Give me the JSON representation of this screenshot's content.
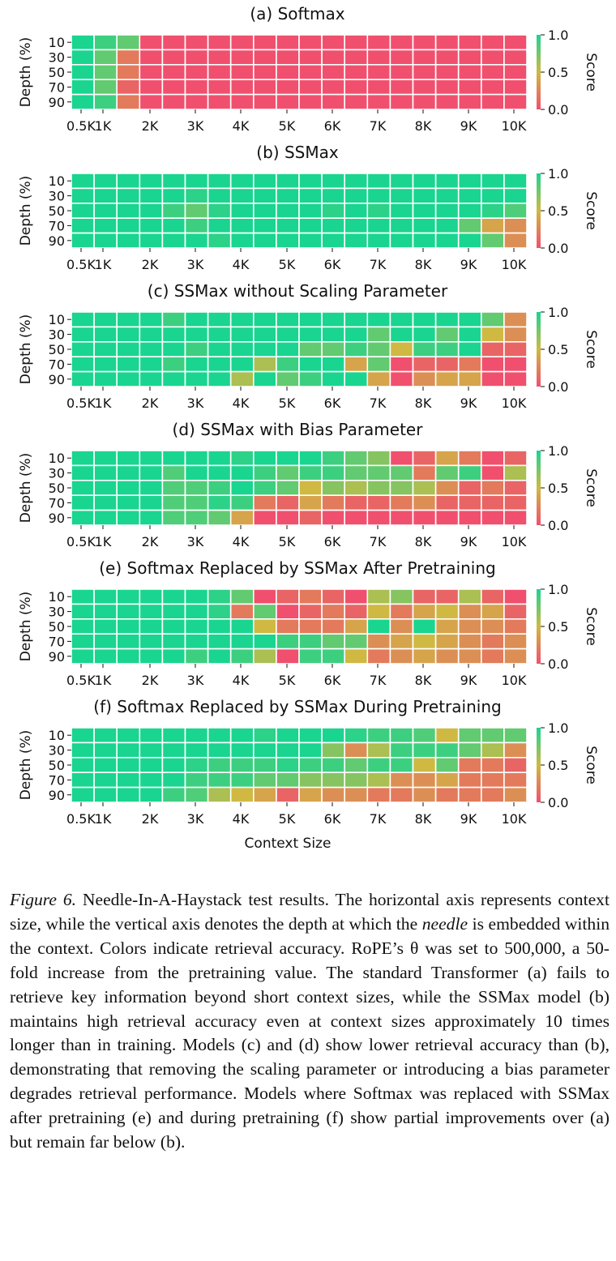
{
  "chart_data": [
    {
      "type": "heatmap",
      "title": "(a) Softmax",
      "xlabel": "",
      "ylabel": "Depth (%)",
      "colorbar_label": "Score",
      "colorbar_ticks": [
        "1.0",
        "0.5",
        "0.0"
      ],
      "x_tick_labels": [
        "0.5K",
        "1K",
        "2K",
        "3K",
        "4K",
        "5K",
        "6K",
        "7K",
        "8K",
        "9K",
        "10K"
      ],
      "y_tick_labels": [
        "10",
        "30",
        "50",
        "70",
        "90"
      ],
      "value_range": [
        0,
        1
      ],
      "values": [
        [
          1.0,
          0.9,
          0.8,
          0,
          0,
          0,
          0,
          0,
          0,
          0,
          0,
          0,
          0,
          0,
          0,
          0,
          0,
          0,
          0,
          0
        ],
        [
          1.0,
          0.8,
          0.2,
          0,
          0,
          0,
          0,
          0,
          0,
          0,
          0,
          0,
          0,
          0,
          0,
          0,
          0,
          0,
          0,
          0
        ],
        [
          1.0,
          0.8,
          0.2,
          0,
          0,
          0,
          0,
          0,
          0,
          0,
          0,
          0,
          0,
          0,
          0,
          0,
          0,
          0,
          0,
          0
        ],
        [
          1.0,
          0.8,
          0.1,
          0,
          0,
          0,
          0,
          0,
          0,
          0,
          0,
          0,
          0,
          0,
          0,
          0,
          0,
          0,
          0,
          0
        ],
        [
          1.0,
          0.9,
          0.2,
          0,
          0,
          0,
          0,
          0,
          0,
          0,
          0,
          0,
          0,
          0,
          0,
          0,
          0,
          0,
          0,
          0
        ]
      ]
    },
    {
      "type": "heatmap",
      "title": "(b) SSMax",
      "xlabel": "",
      "ylabel": "Depth (%)",
      "colorbar_label": "Score",
      "colorbar_ticks": [
        "1.0",
        "0.5",
        "0.0"
      ],
      "x_tick_labels": [
        "0.5K",
        "1K",
        "2K",
        "3K",
        "4K",
        "5K",
        "6K",
        "7K",
        "8K",
        "9K",
        "10K"
      ],
      "y_tick_labels": [
        "10",
        "30",
        "50",
        "70",
        "90"
      ],
      "value_range": [
        0,
        1
      ],
      "values": [
        [
          1,
          1,
          1,
          1,
          1,
          1,
          1,
          1,
          1,
          1,
          1,
          1,
          1,
          1,
          1,
          1,
          1,
          1,
          1,
          1
        ],
        [
          1,
          1,
          1,
          1,
          1,
          0.95,
          1,
          1,
          1,
          1,
          1,
          1,
          1,
          1,
          1,
          1,
          1,
          1,
          1,
          1
        ],
        [
          1,
          1,
          1,
          1,
          0.9,
          0.8,
          0.95,
          1,
          1,
          1,
          1,
          0.95,
          1,
          0.95,
          1,
          1,
          1,
          1,
          0.95,
          0.85
        ],
        [
          1,
          1,
          1,
          1,
          1,
          0.9,
          1,
          1,
          1,
          1,
          1,
          1,
          1,
          1,
          1,
          1,
          1,
          0.8,
          0.4,
          0.3
        ],
        [
          1,
          1,
          1,
          1,
          1,
          1,
          0.95,
          1,
          1,
          1,
          1,
          1,
          1,
          1,
          1,
          1,
          1,
          1,
          0.8,
          0.3
        ]
      ]
    },
    {
      "type": "heatmap",
      "title": "(c) SSMax without Scaling Parameter",
      "xlabel": "",
      "ylabel": "Depth (%)",
      "colorbar_label": "Score",
      "colorbar_ticks": [
        "1.0",
        "0.5",
        "0.0"
      ],
      "x_tick_labels": [
        "0.5K",
        "1K",
        "2K",
        "3K",
        "4K",
        "5K",
        "6K",
        "7K",
        "8K",
        "9K",
        "10K"
      ],
      "y_tick_labels": [
        "10",
        "30",
        "50",
        "70",
        "90"
      ],
      "value_range": [
        0,
        1
      ],
      "values": [
        [
          1,
          1,
          1,
          1,
          0.9,
          1,
          1,
          1,
          1,
          1,
          1,
          1,
          1,
          1,
          1,
          1,
          1,
          1,
          0.8,
          0.3
        ],
        [
          1,
          1,
          1,
          1,
          1,
          1,
          1,
          1,
          1,
          1,
          1,
          1,
          1,
          0.8,
          1,
          1,
          0.8,
          1,
          0.5,
          0.3
        ],
        [
          1,
          1,
          1,
          1,
          1,
          0.9,
          1,
          1,
          1,
          1,
          0.8,
          0.8,
          0.9,
          0.8,
          0.5,
          0.9,
          0.9,
          1,
          0.1,
          0.1
        ],
        [
          1,
          1,
          1,
          1,
          0.9,
          1,
          1,
          1,
          0.6,
          0.9,
          1,
          1,
          0.4,
          0.8,
          0,
          0.1,
          0.1,
          0.2,
          0,
          0
        ],
        [
          1,
          1,
          1,
          1,
          1,
          1,
          1,
          0.6,
          1,
          0.8,
          0.9,
          1,
          1,
          0.4,
          0,
          0.3,
          0.4,
          0.4,
          0,
          0
        ]
      ]
    },
    {
      "type": "heatmap",
      "title": "(d) SSMax with Bias Parameter",
      "xlabel": "",
      "ylabel": "Depth (%)",
      "colorbar_label": "Score",
      "colorbar_ticks": [
        "1.0",
        "0.5",
        "0.0"
      ],
      "x_tick_labels": [
        "0.5K",
        "1K",
        "2K",
        "3K",
        "4K",
        "5K",
        "6K",
        "7K",
        "8K",
        "9K",
        "10K"
      ],
      "y_tick_labels": [
        "10",
        "30",
        "50",
        "70",
        "90"
      ],
      "value_range": [
        0,
        1
      ],
      "values": [
        [
          1,
          1,
          1,
          1,
          1,
          1,
          1,
          0.95,
          1,
          1,
          1,
          0.9,
          0.8,
          0.7,
          0,
          0.1,
          0.4,
          0.2,
          0,
          0.1
        ],
        [
          1,
          1,
          1,
          1,
          0.85,
          1,
          1,
          1,
          0.9,
          0.8,
          0.9,
          0.9,
          0.8,
          0.8,
          0.8,
          0.2,
          0.8,
          0.9,
          0,
          0.6
        ],
        [
          1,
          1,
          1,
          1,
          0.85,
          0.85,
          0.9,
          1,
          0.9,
          0.8,
          0.5,
          0.7,
          0.6,
          0.7,
          0.7,
          0.6,
          0.3,
          0.1,
          0.2,
          0.1
        ],
        [
          1,
          1,
          1,
          1,
          0.85,
          0.85,
          0.95,
          0.9,
          0.2,
          0.1,
          0.4,
          0.2,
          0.1,
          0.1,
          0.2,
          0.3,
          0.1,
          0.1,
          0.1,
          0.1
        ],
        [
          1,
          1,
          1,
          1,
          0.85,
          0.85,
          0.8,
          0.4,
          0,
          0,
          0.1,
          0,
          0,
          0,
          0,
          0,
          0,
          0,
          0,
          0
        ]
      ]
    },
    {
      "type": "heatmap",
      "title": "(e) Softmax Replaced by SSMax After Pretraining",
      "xlabel": "",
      "ylabel": "Depth (%)",
      "colorbar_label": "Score",
      "colorbar_ticks": [
        "1.0",
        "0.5",
        "0.0"
      ],
      "x_tick_labels": [
        "0.5K",
        "1K",
        "2K",
        "3K",
        "4K",
        "5K",
        "6K",
        "7K",
        "8K",
        "9K",
        "10K"
      ],
      "y_tick_labels": [
        "10",
        "30",
        "50",
        "70",
        "90"
      ],
      "value_range": [
        0,
        1
      ],
      "values": [
        [
          1,
          1,
          1,
          1,
          1,
          1,
          0.95,
          0.8,
          0,
          0.1,
          0.2,
          0.1,
          0,
          0.6,
          0.7,
          0.1,
          0.1,
          0.6,
          0.1,
          0
        ],
        [
          1,
          1,
          1,
          1,
          1,
          1,
          0.95,
          0.2,
          0.8,
          0,
          0.1,
          0.2,
          0.1,
          0.5,
          0.2,
          0.4,
          0.5,
          0.3,
          0.4,
          0.1
        ],
        [
          1,
          1,
          1,
          1,
          1,
          1,
          1,
          1,
          0.5,
          0.2,
          0.2,
          0.2,
          0.4,
          1,
          0.3,
          1,
          0.4,
          0.3,
          0.3,
          0.2
        ],
        [
          1,
          1,
          1,
          1,
          1,
          1,
          1,
          1,
          1,
          0.9,
          0.9,
          0.8,
          0.8,
          0.3,
          0.4,
          0.5,
          0.4,
          0.3,
          0.2,
          0.3
        ],
        [
          1,
          1,
          1,
          1,
          1,
          0.9,
          1,
          0.9,
          0.6,
          0,
          0.9,
          0.9,
          0.5,
          0.2,
          0.3,
          0.4,
          0.3,
          0.3,
          0.2,
          0.3
        ]
      ]
    },
    {
      "type": "heatmap",
      "title": "(f) Softmax Replaced by SSMax During Pretraining",
      "xlabel": "Context Size",
      "ylabel": "Depth (%)",
      "colorbar_label": "Score",
      "colorbar_ticks": [
        "1.0",
        "0.5",
        "0.0"
      ],
      "x_tick_labels": [
        "0.5K",
        "1K",
        "2K",
        "3K",
        "4K",
        "5K",
        "6K",
        "7K",
        "8K",
        "9K",
        "10K"
      ],
      "y_tick_labels": [
        "10",
        "30",
        "50",
        "70",
        "90"
      ],
      "value_range": [
        0,
        1
      ],
      "values": [
        [
          1,
          1,
          1,
          1,
          1,
          1,
          1,
          1,
          0.95,
          1,
          1,
          1,
          0.95,
          0.9,
          0.9,
          0.85,
          0.5,
          0.8,
          0.8,
          0.8
        ],
        [
          1,
          1,
          1,
          1,
          1,
          1,
          1,
          1,
          1,
          1,
          1,
          0.7,
          0.3,
          0.6,
          0.9,
          0.9,
          0.9,
          0.8,
          0.6,
          0.3
        ],
        [
          1,
          1,
          1,
          1,
          1,
          0.95,
          0.9,
          0.9,
          0.9,
          0.95,
          0.9,
          0.9,
          0.8,
          0.9,
          0.9,
          0.5,
          0.8,
          0.2,
          0.2,
          0.1
        ],
        [
          1,
          1,
          1,
          1,
          1,
          0.9,
          0.9,
          0.9,
          0.8,
          0.8,
          0.7,
          0.7,
          0.7,
          0.6,
          0.3,
          0.3,
          0.4,
          0.2,
          0.2,
          0.2
        ],
        [
          1,
          1,
          1,
          1,
          0.9,
          0.85,
          0.6,
          0.5,
          0.4,
          0.1,
          0.4,
          0.3,
          0.3,
          0.2,
          0.2,
          0.3,
          0.2,
          0.2,
          0.2,
          0.3
        ]
      ]
    }
  ],
  "colors": {
    "scale_low": "#f0506e",
    "scale_mid": "#cfb942",
    "scale_high": "#19d590",
    "cell_border": "#ffffff"
  },
  "caption": {
    "label": "Figure 6.",
    "text_before_italic": "Needle-In-A-Haystack test results. The horizontal axis represents context size, while the vertical axis denotes the depth at which the",
    "italic_word": "needle",
    "text_after_italic": "is embedded within the context. Colors indicate retrieval accuracy. RoPE’s θ was set to 500,000, a 50-fold increase from the pretraining value. The standard Transformer (a) fails to retrieve key information beyond short context sizes, while the SSMax model (b) maintains high retrieval accuracy even at context sizes approximately 10 times longer than in training. Models (c) and (d) show lower retrieval accuracy than (b), demonstrating that removing the scaling parameter or introducing a bias parameter degrades retrieval performance. Models where Softmax was replaced with SSMax after pretraining (e) and during pretraining (f) show partial improvements over (a) but remain far below (b)."
  }
}
